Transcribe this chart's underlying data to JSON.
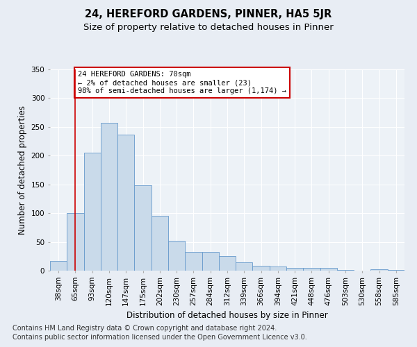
{
  "title": "24, HEREFORD GARDENS, PINNER, HA5 5JR",
  "subtitle": "Size of property relative to detached houses in Pinner",
  "xlabel": "Distribution of detached houses by size in Pinner",
  "ylabel": "Number of detached properties",
  "categories": [
    "38sqm",
    "65sqm",
    "93sqm",
    "120sqm",
    "147sqm",
    "175sqm",
    "202sqm",
    "230sqm",
    "257sqm",
    "284sqm",
    "312sqm",
    "339sqm",
    "366sqm",
    "394sqm",
    "421sqm",
    "448sqm",
    "476sqm",
    "503sqm",
    "530sqm",
    "558sqm",
    "585sqm"
  ],
  "bar_values": [
    17,
    100,
    205,
    257,
    237,
    149,
    95,
    52,
    33,
    33,
    25,
    14,
    8,
    7,
    5,
    5,
    5,
    1,
    0,
    2,
    1
  ],
  "bar_color": "#c9daea",
  "bar_edge_color": "#6699cc",
  "red_line_x": 1,
  "annotation_text": "24 HEREFORD GARDENS: 70sqm\n← 2% of detached houses are smaller (23)\n98% of semi-detached houses are larger (1,174) →",
  "annotation_box_color": "#ffffff",
  "annotation_box_edge": "#cc0000",
  "vline_color": "#cc0000",
  "footer1": "Contains HM Land Registry data © Crown copyright and database right 2024.",
  "footer2": "Contains public sector information licensed under the Open Government Licence v3.0.",
  "ylim": [
    0,
    350
  ],
  "yticks": [
    0,
    50,
    100,
    150,
    200,
    250,
    300,
    350
  ],
  "bg_color": "#e8edf4",
  "plot_bg_color": "#edf2f7",
  "grid_color": "#ffffff",
  "title_fontsize": 10.5,
  "subtitle_fontsize": 9.5,
  "axis_label_fontsize": 8.5,
  "tick_fontsize": 7.5,
  "footer_fontsize": 7.0,
  "annot_fontsize": 7.5
}
